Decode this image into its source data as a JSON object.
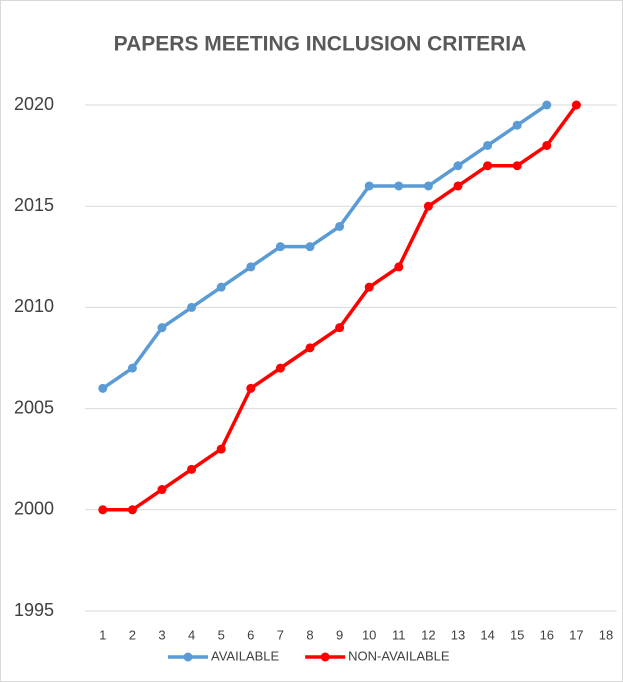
{
  "chart_data": {
    "type": "line",
    "title": "PAPERS MEETING INCLUSION CRITERIA",
    "categories": [
      "1",
      "2",
      "3",
      "4",
      "5",
      "6",
      "7",
      "8",
      "9",
      "10",
      "11",
      "12",
      "13",
      "14",
      "15",
      "16",
      "17",
      "18"
    ],
    "series": [
      {
        "name": "AVAILABLE",
        "color": "#5b9bd5",
        "values": [
          2006,
          2007,
          2009,
          2010,
          2011,
          2012,
          2013,
          2013,
          2014,
          2016,
          2016,
          2016,
          2017,
          2018,
          2019,
          2020,
          null,
          null
        ]
      },
      {
        "name": "NON-AVAILABLE",
        "color": "#ff0000",
        "values": [
          2000,
          2000,
          2001,
          2002,
          2003,
          2006,
          2007,
          2008,
          2009,
          2011,
          2012,
          2015,
          2016,
          2017,
          2017,
          2018,
          2020,
          null
        ]
      }
    ],
    "ylim": [
      1995,
      2020
    ],
    "yticks": [
      1995,
      2000,
      2005,
      2010,
      2015,
      2020
    ],
    "grid": true,
    "legend": "bottom"
  }
}
